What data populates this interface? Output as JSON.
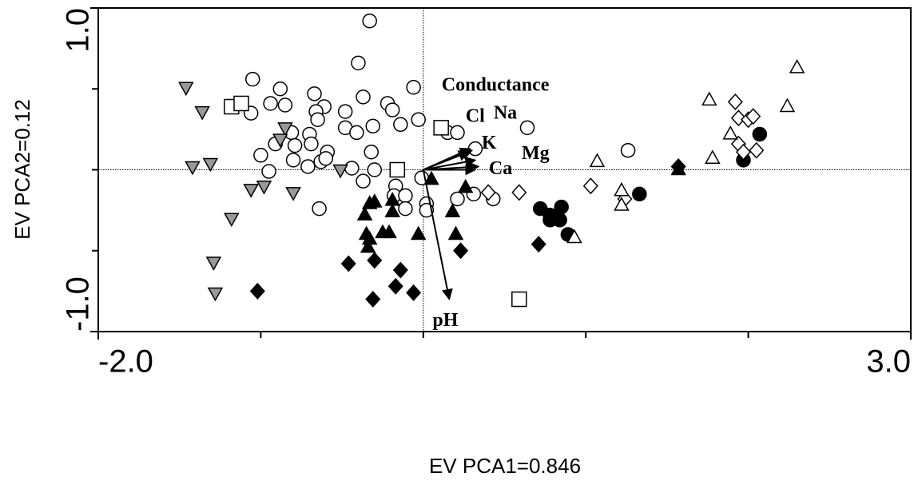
{
  "chart_data": {
    "type": "scatter",
    "x_label": "EV PCA1=0.846",
    "y_label": "EV PCA2=0.12",
    "xlim": [
      -2,
      3
    ],
    "ylim": [
      -1,
      1
    ],
    "xticks": [
      {
        "value": -2,
        "label": "-2.0"
      },
      {
        "value": 3,
        "label": "3.0"
      }
    ],
    "yticks": [
      {
        "value": -1,
        "label": "-1.0"
      },
      {
        "value": 1,
        "label": "1.0"
      }
    ],
    "xminorticks": [
      -1,
      0,
      1,
      2
    ],
    "yminorticks": [
      -0.5,
      0,
      0.5
    ],
    "origin_lines": true,
    "series": [
      {
        "marker": "circle",
        "color": "#ffffff",
        "x": [
          -0.33,
          -0.4,
          -1.05,
          -0.88,
          -0.67,
          -0.94,
          -0.85,
          -0.61,
          -0.37,
          -0.22,
          -0.06,
          -1.06,
          -0.66,
          -0.48,
          -0.19,
          -0.14,
          -0.03,
          -0.65,
          -0.81,
          -0.48,
          -0.31,
          -0.41,
          -0.7,
          -0.91,
          -0.79,
          -0.69,
          -0.59,
          -1.0,
          -0.8,
          -0.71,
          -0.63,
          -0.6,
          -0.44,
          -0.32,
          -0.3,
          -0.95,
          -0.37,
          -0.17,
          -0.18,
          -0.11,
          0.02,
          0.02,
          -0.11,
          -0.64,
          0.15,
          0.21,
          0.64,
          0.32,
          1.26,
          0.31,
          0.43,
          0.21,
          -0.01
        ],
        "values": [
          0.92,
          0.66,
          0.56,
          0.5,
          0.47,
          0.41,
          0.4,
          0.39,
          0.45,
          0.41,
          0.51,
          0.35,
          0.36,
          0.36,
          0.37,
          0.28,
          0.31,
          0.31,
          0.23,
          0.26,
          0.27,
          0.23,
          0.22,
          0.16,
          0.15,
          0.16,
          0.11,
          0.09,
          0.06,
          0.02,
          0.05,
          0.07,
          0.01,
          0.11,
          0.0,
          -0.01,
          -0.07,
          -0.1,
          -0.16,
          -0.16,
          -0.21,
          -0.25,
          -0.24,
          -0.24,
          0.23,
          0.23,
          0.26,
          0.13,
          0.12,
          -0.15,
          -0.18,
          -0.18,
          -0.05
        ]
      },
      {
        "marker": "triangle-down",
        "color": "#999999",
        "x": [
          -1.46,
          -1.36,
          -1.42,
          -1.31,
          -0.85,
          -0.88,
          -0.51,
          -1.06,
          -0.98,
          -0.8,
          -1.18,
          -1.29,
          -1.28
        ],
        "values": [
          0.51,
          0.36,
          0.02,
          0.04,
          0.26,
          0.19,
          0.0,
          -0.12,
          -0.1,
          -0.14,
          -0.3,
          -0.57,
          -0.76
        ]
      },
      {
        "marker": "square",
        "color": "#ffffff",
        "x": [
          -1.18,
          -1.12,
          -0.16,
          0.11,
          0.59
        ],
        "values": [
          0.39,
          0.41,
          0.0,
          0.26,
          -0.8
        ]
      },
      {
        "marker": "triangle",
        "color": "#000000",
        "x": [
          -0.33,
          -0.36,
          -0.3,
          -0.19,
          -0.19,
          0.05,
          0.26,
          0.18,
          -0.35,
          -0.33,
          -0.21,
          -0.25,
          -0.03,
          0.2,
          -0.34,
          1.57
        ],
        "values": [
          -0.21,
          -0.28,
          -0.2,
          -0.19,
          -0.26,
          -0.06,
          -0.11,
          -0.26,
          -0.4,
          -0.43,
          -0.39,
          -0.39,
          -0.4,
          -0.4,
          -0.48,
          0.0
        ]
      },
      {
        "marker": "diamond",
        "color": "#000000",
        "x": [
          -1.02,
          -0.46,
          -0.3,
          -0.14,
          -0.31,
          -0.17,
          -0.06,
          0.23,
          0.71,
          1.57
        ],
        "values": [
          -0.75,
          -0.58,
          -0.56,
          -0.62,
          -0.8,
          -0.72,
          -0.76,
          -0.5,
          -0.46,
          0.02
        ]
      },
      {
        "marker": "circle",
        "color": "#000000",
        "x": [
          0.72,
          0.78,
          0.85,
          0.84,
          0.89,
          1.33,
          1.97,
          2.07,
          0.78
        ],
        "values": [
          -0.24,
          -0.28,
          -0.23,
          -0.31,
          -0.4,
          -0.15,
          0.06,
          0.22,
          -0.31
        ]
      },
      {
        "marker": "diamond",
        "color": "#ffffff",
        "x": [
          0.4,
          0.59,
          1.03,
          1.24,
          1.92,
          1.94,
          2.0,
          2.03,
          1.94,
          1.97,
          2.05
        ],
        "values": [
          -0.14,
          -0.14,
          -0.1,
          -0.18,
          0.42,
          0.32,
          0.31,
          0.33,
          0.16,
          0.11,
          0.12
        ]
      },
      {
        "marker": "triangle",
        "color": "#ffffff",
        "x": [
          2.3,
          1.76,
          2.24,
          1.89,
          1.78,
          1.07,
          1.22,
          1.22,
          0.93
        ],
        "values": [
          0.63,
          0.43,
          0.39,
          0.22,
          0.07,
          0.05,
          -0.13,
          -0.22,
          -0.42
        ]
      }
    ],
    "vectors": [
      {
        "label": "Conductance",
        "x": 0.29,
        "y": 0.13
      },
      {
        "label": "Cl",
        "x": 0.28,
        "y": 0.11
      },
      {
        "label": "Na",
        "x": 0.3,
        "y": 0.12
      },
      {
        "label": "K",
        "x": 0.32,
        "y": 0.06
      },
      {
        "label": "Mg",
        "x": 0.34,
        "y": 0.02
      },
      {
        "label": "Ca",
        "x": 0.32,
        "y": 0.0
      },
      {
        "label": "pH",
        "x": 0.16,
        "y": -0.8
      }
    ]
  }
}
